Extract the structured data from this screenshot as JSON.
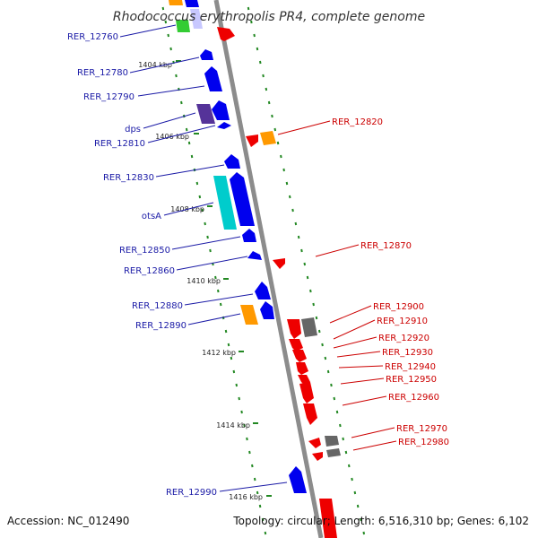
{
  "title": "Rhodococcus erythropolis PR4, complete genome",
  "accession": "Accession: NC_012490",
  "topology": "Topology: circular; Length: 6,516,310 bp; Genes: 6,102",
  "colors": {
    "backbone": "#8c8c8c",
    "cds_reverse": "#0000ee",
    "cds_forward": "#ee0000",
    "trna": "#00cccc",
    "rrna": "#ff9900",
    "other": "#666666",
    "pseudo": "#553399",
    "misc": "#33cc33",
    "ticks": "#228822",
    "label_left": "#1a1aa6",
    "label_right": "#cc0000"
  },
  "kbp_ticks": [
    "1404 kbp",
    "1406 kbp",
    "1408 kbp",
    "1410 kbp",
    "1412 kbp",
    "1414 kbp",
    "1416 kbp"
  ],
  "genes_left": [
    "RER_12760",
    "RER_12780",
    "RER_12790",
    "dps",
    "RER_12810",
    "RER_12830",
    "otsA",
    "RER_12850",
    "RER_12860",
    "RER_12880",
    "RER_12890",
    "RER_12990"
  ],
  "genes_right": [
    "RER_12820",
    "RER_12870",
    "RER_12900",
    "RER_12910",
    "RER_12920",
    "RER_12930",
    "RER_12940",
    "RER_12950",
    "RER_12960",
    "RER_12970",
    "RER_12980"
  ]
}
